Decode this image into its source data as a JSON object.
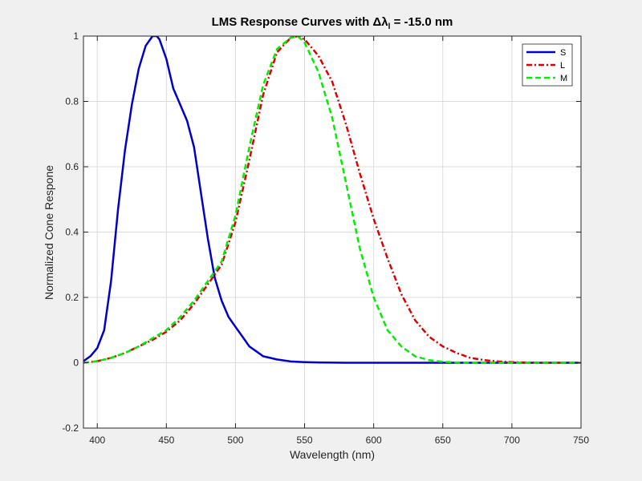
{
  "chart_data": {
    "type": "line",
    "title": "LMS Response Curves with Δλ",
    "title_subscript": "l",
    "title_suffix": " = -15.0 nm",
    "xlabel": "Wavelength (nm)",
    "ylabel": "Normalized Cone Respone",
    "xlim": [
      390,
      750
    ],
    "ylim": [
      -0.2,
      1
    ],
    "xticks": [
      400,
      450,
      500,
      550,
      600,
      650,
      700,
      750
    ],
    "yticks": [
      -0.2,
      0,
      0.2,
      0.4,
      0.6,
      0.8,
      1
    ],
    "ytick_labels": [
      "-0.2",
      "0",
      "0.2",
      "0.4",
      "0.6",
      "0.8",
      "1"
    ],
    "grid": true,
    "legend_position": "top-right",
    "series": [
      {
        "name": "S",
        "color": "#0000cc",
        "style": "solid",
        "x": [
          390,
          395,
          400,
          405,
          410,
          415,
          420,
          425,
          430,
          435,
          440,
          443,
          445,
          450,
          455,
          460,
          465,
          470,
          475,
          480,
          485,
          490,
          495,
          500,
          505,
          510,
          515,
          520,
          530,
          540,
          550,
          560,
          580,
          600,
          650,
          700,
          750
        ],
        "y": [
          0.005,
          0.02,
          0.045,
          0.1,
          0.25,
          0.47,
          0.65,
          0.79,
          0.9,
          0.97,
          1.0,
          1.0,
          0.99,
          0.93,
          0.84,
          0.79,
          0.74,
          0.66,
          0.52,
          0.38,
          0.26,
          0.19,
          0.14,
          0.11,
          0.08,
          0.05,
          0.035,
          0.02,
          0.01,
          0.004,
          0.002,
          0.001,
          0,
          0,
          0,
          0,
          0
        ]
      },
      {
        "name": "L",
        "color": "#dd0000",
        "style": "dashdot",
        "x": [
          390,
          400,
          410,
          420,
          430,
          440,
          450,
          460,
          470,
          480,
          490,
          500,
          510,
          520,
          530,
          540,
          545,
          550,
          560,
          570,
          580,
          590,
          600,
          610,
          620,
          630,
          640,
          650,
          660,
          670,
          680,
          690,
          700,
          720,
          750
        ],
        "y": [
          0,
          0.005,
          0.015,
          0.03,
          0.05,
          0.07,
          0.095,
          0.13,
          0.18,
          0.24,
          0.3,
          0.43,
          0.62,
          0.82,
          0.95,
          0.995,
          1.0,
          0.99,
          0.94,
          0.86,
          0.73,
          0.58,
          0.44,
          0.32,
          0.21,
          0.13,
          0.08,
          0.05,
          0.03,
          0.015,
          0.008,
          0.004,
          0.002,
          0,
          0
        ]
      },
      {
        "name": "M",
        "color": "#00ee00",
        "style": "dashed",
        "x": [
          390,
          400,
          410,
          420,
          430,
          440,
          450,
          460,
          470,
          480,
          490,
          500,
          510,
          520,
          530,
          540,
          545,
          550,
          560,
          570,
          580,
          590,
          600,
          610,
          620,
          630,
          640,
          650,
          660,
          670,
          680,
          690,
          700,
          750
        ],
        "y": [
          0,
          0.005,
          0.015,
          0.03,
          0.05,
          0.075,
          0.1,
          0.14,
          0.19,
          0.25,
          0.31,
          0.45,
          0.66,
          0.85,
          0.96,
          0.995,
          1.0,
          0.98,
          0.89,
          0.75,
          0.55,
          0.35,
          0.2,
          0.1,
          0.05,
          0.02,
          0.008,
          0.003,
          0.001,
          0,
          0,
          0,
          0,
          0
        ]
      }
    ]
  }
}
